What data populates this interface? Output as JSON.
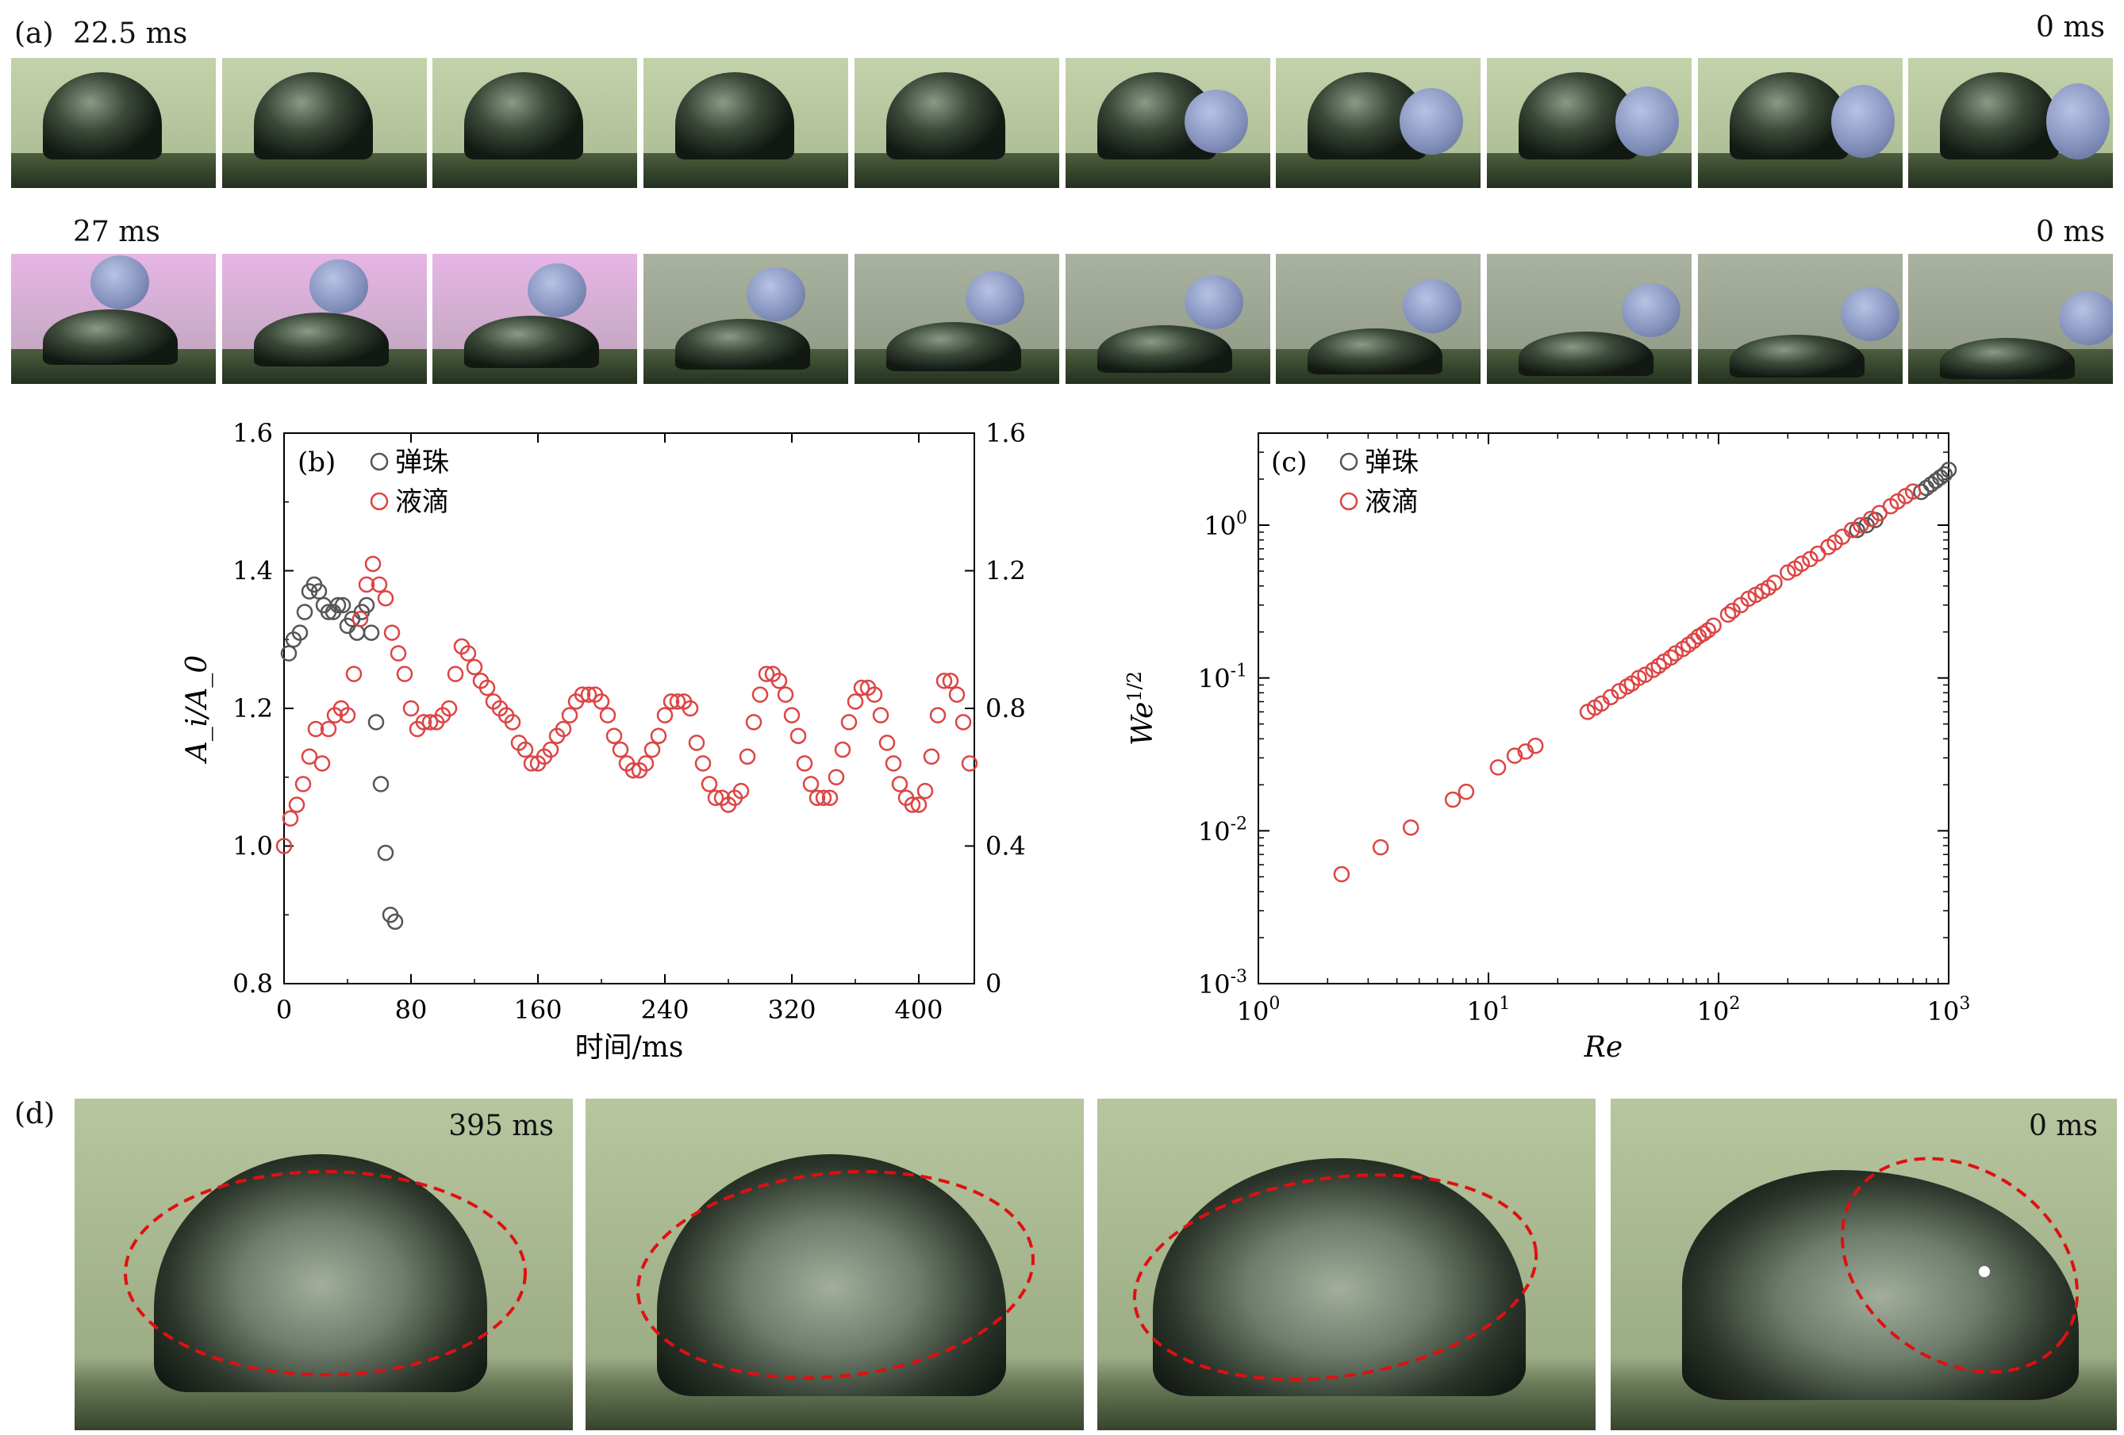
{
  "panel_a": {
    "label": "(a)",
    "row1": {
      "start_label": "22.5 ms",
      "end_label": "0 ms"
    },
    "row2": {
      "start_label": "27 ms",
      "end_label": "0 ms"
    }
  },
  "panel_d": {
    "label": "(d)",
    "start_label": "395 ms",
    "end_label": "0 ms"
  },
  "colors": {
    "bead_series": "#555555",
    "droplet_series": "#dd4444",
    "ellipse": "#e01010"
  },
  "chart_data": [
    {
      "type": "scatter",
      "panel_label": "(b)",
      "xlabel": "时间/ms",
      "ylabel": "A_i/A_0",
      "xlim": [
        0,
        435
      ],
      "ylim": [
        0.8,
        1.6
      ],
      "xticks": [
        "0",
        "80",
        "160",
        "240",
        "320",
        "400"
      ],
      "yticks_left": [
        "0.8",
        "1.0",
        "1.2",
        "1.4",
        "1.6"
      ],
      "yticks_right": [
        "0",
        "0.4",
        "0.8",
        "1.2",
        "1.6"
      ],
      "legend": [
        "弹珠",
        "液滴"
      ],
      "legend_position": "top-left",
      "series": [
        {
          "name": "弹珠",
          "marker": "open-circle",
          "x": [
            3,
            6,
            10,
            13,
            16,
            19,
            22,
            25,
            28,
            31,
            34,
            37,
            40,
            43,
            46,
            49,
            52,
            55,
            58,
            61,
            64,
            67,
            70
          ],
          "y": [
            1.28,
            1.3,
            1.31,
            1.34,
            1.37,
            1.38,
            1.37,
            1.35,
            1.34,
            1.34,
            1.35,
            1.35,
            1.32,
            1.33,
            1.31,
            1.34,
            1.35,
            1.31,
            1.18,
            1.09,
            0.99,
            0.9,
            0.89
          ]
        },
        {
          "name": "液滴",
          "marker": "open-circle",
          "x": [
            0,
            4,
            8,
            12,
            16,
            20,
            24,
            28,
            32,
            36,
            40,
            44,
            48,
            52,
            56,
            60,
            64,
            68,
            72,
            76,
            80,
            84,
            88,
            92,
            96,
            100,
            104,
            108,
            112,
            116,
            120,
            124,
            128,
            132,
            136,
            140,
            144,
            148,
            152,
            156,
            160,
            164,
            168,
            172,
            176,
            180,
            184,
            188,
            192,
            196,
            200,
            204,
            208,
            212,
            216,
            220,
            224,
            228,
            232,
            236,
            240,
            244,
            248,
            252,
            256,
            260,
            264,
            268,
            272,
            276,
            280,
            284,
            288,
            292,
            296,
            300,
            304,
            308,
            312,
            316,
            320,
            324,
            328,
            332,
            336,
            340,
            344,
            348,
            352,
            356,
            360,
            364,
            368,
            372,
            376,
            380,
            384,
            388,
            392,
            396,
            400,
            404,
            408,
            412,
            416,
            420,
            424,
            428,
            432
          ],
          "y": [
            1.0,
            1.04,
            1.06,
            1.09,
            1.13,
            1.17,
            1.12,
            1.17,
            1.19,
            1.2,
            1.19,
            1.25,
            1.33,
            1.38,
            1.41,
            1.38,
            1.36,
            1.31,
            1.28,
            1.25,
            1.2,
            1.17,
            1.18,
            1.18,
            1.18,
            1.19,
            1.2,
            1.25,
            1.29,
            1.28,
            1.26,
            1.24,
            1.23,
            1.21,
            1.2,
            1.19,
            1.18,
            1.15,
            1.14,
            1.12,
            1.12,
            1.13,
            1.14,
            1.16,
            1.17,
            1.19,
            1.21,
            1.22,
            1.22,
            1.22,
            1.21,
            1.19,
            1.16,
            1.14,
            1.12,
            1.11,
            1.11,
            1.12,
            1.14,
            1.16,
            1.19,
            1.21,
            1.21,
            1.21,
            1.2,
            1.15,
            1.12,
            1.09,
            1.07,
            1.07,
            1.06,
            1.07,
            1.08,
            1.13,
            1.18,
            1.22,
            1.25,
            1.25,
            1.24,
            1.22,
            1.19,
            1.16,
            1.12,
            1.09,
            1.07,
            1.07,
            1.07,
            1.1,
            1.14,
            1.18,
            1.21,
            1.23,
            1.23,
            1.22,
            1.19,
            1.15,
            1.12,
            1.09,
            1.07,
            1.06,
            1.06,
            1.08,
            1.13,
            1.19,
            1.24,
            1.24,
            1.22,
            1.18,
            1.12
          ]
        }
      ]
    },
    {
      "type": "scatter",
      "panel_label": "(c)",
      "xlabel": "Re",
      "ylabel": "We^1/2",
      "xscale": "log",
      "yscale": "log",
      "xlim": [
        1,
        1000
      ],
      "ylim": [
        0.001,
        4
      ],
      "legend": [
        "弹珠",
        "液滴"
      ],
      "legend_position": "top-left",
      "series": [
        {
          "name": "弹珠",
          "marker": "open-circle",
          "x": [
            400,
            440,
            480,
            760,
            800,
            840,
            880,
            920,
            960,
            1000
          ],
          "y": [
            0.93,
            1.0,
            1.08,
            1.65,
            1.75,
            1.85,
            1.95,
            2.05,
            2.15,
            2.3
          ]
        },
        {
          "name": "液滴",
          "marker": "open-circle",
          "x": [
            2.3,
            3.4,
            4.6,
            7,
            8,
            11,
            13,
            14.5,
            16,
            27,
            29,
            31,
            34,
            37,
            40,
            42,
            45,
            48,
            52,
            55,
            58,
            62,
            65,
            70,
            74,
            78,
            82,
            86,
            90,
            95,
            110,
            115,
            125,
            135,
            145,
            155,
            165,
            175,
            200,
            215,
            230,
            250,
            270,
            300,
            320,
            345,
            380,
            415,
            460,
            500,
            560,
            600,
            650,
            700
          ],
          "y": [
            0.0052,
            0.0078,
            0.0105,
            0.016,
            0.018,
            0.026,
            0.031,
            0.033,
            0.036,
            0.06,
            0.064,
            0.068,
            0.075,
            0.082,
            0.088,
            0.092,
            0.1,
            0.105,
            0.113,
            0.12,
            0.128,
            0.136,
            0.145,
            0.155,
            0.165,
            0.175,
            0.187,
            0.195,
            0.205,
            0.22,
            0.26,
            0.275,
            0.3,
            0.33,
            0.35,
            0.37,
            0.39,
            0.42,
            0.49,
            0.52,
            0.56,
            0.6,
            0.65,
            0.72,
            0.77,
            0.84,
            0.93,
            1.0,
            1.1,
            1.2,
            1.33,
            1.43,
            1.55,
            1.66
          ]
        }
      ]
    }
  ]
}
